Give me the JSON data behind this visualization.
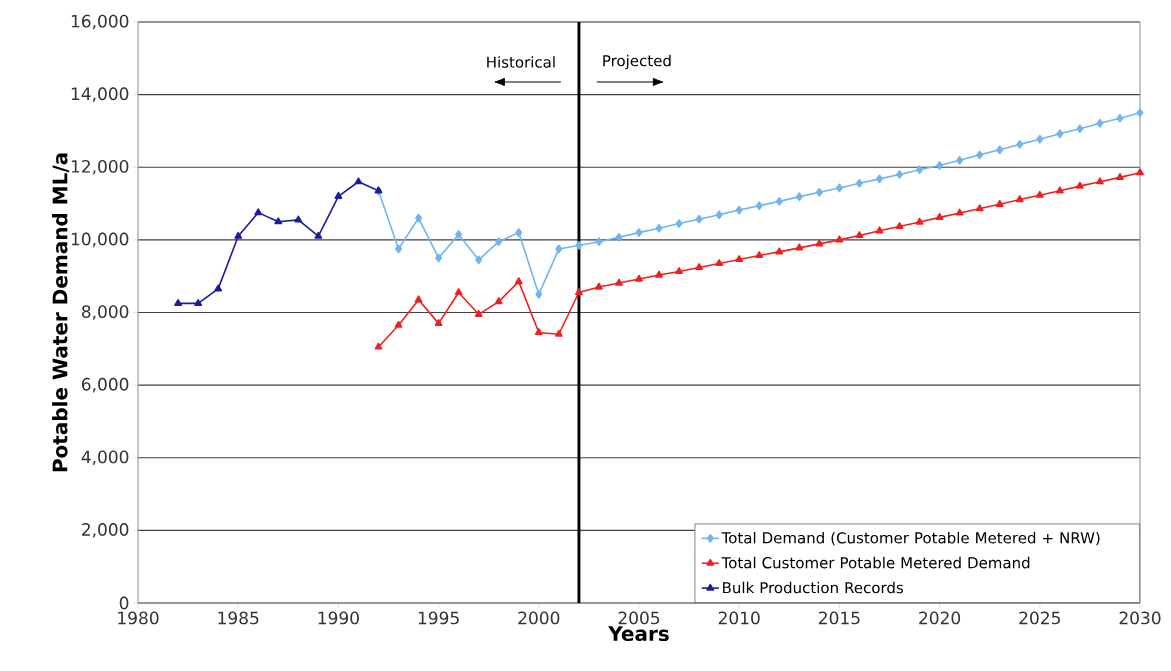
{
  "chart_data": {
    "type": "line",
    "xlabel": "Years",
    "ylabel": "Potable Water Demand ML/a",
    "xlim": [
      1980,
      2030
    ],
    "ylim": [
      0,
      16000
    ],
    "xticks": [
      {
        "value": 1980,
        "label": "1980"
      },
      {
        "value": 1985,
        "label": "1985"
      },
      {
        "value": 1990,
        "label": "1990"
      },
      {
        "value": 1995,
        "label": "1995"
      },
      {
        "value": 2000,
        "label": "2000"
      },
      {
        "value": 2005,
        "label": "2005"
      },
      {
        "value": 2010,
        "label": "2010"
      },
      {
        "value": 2015,
        "label": "2015"
      },
      {
        "value": 2020,
        "label": "2020"
      },
      {
        "value": 2025,
        "label": "2025"
      },
      {
        "value": 2030,
        "label": "2030"
      }
    ],
    "yticks": [
      {
        "value": 0,
        "label": "0"
      },
      {
        "value": 2000,
        "label": "2,000"
      },
      {
        "value": 4000,
        "label": "4,000"
      },
      {
        "value": 6000,
        "label": "6,000"
      },
      {
        "value": 8000,
        "label": "8,000"
      },
      {
        "value": 10000,
        "label": "10,000"
      },
      {
        "value": 12000,
        "label": "12,000"
      },
      {
        "value": 14000,
        "label": "14,000"
      },
      {
        "value": 16000,
        "label": "16,000"
      }
    ],
    "grid": "y",
    "legend": "bottom right",
    "series": [
      {
        "name": "Total Demand (Customer Potable Metered + NRW)",
        "color": "#70b4f0",
        "marker": "diamond",
        "x": [
          1992,
          1993,
          1994,
          1995,
          1996,
          1997,
          1998,
          1999,
          2000,
          2001,
          2002,
          2003,
          2004,
          2005,
          2006,
          2007,
          2008,
          2009,
          2010,
          2011,
          2012,
          2013,
          2014,
          2015,
          2016,
          2017,
          2018,
          2019,
          2020,
          2021,
          2022,
          2023,
          2024,
          2025,
          2026,
          2027,
          2028,
          2029,
          2030
        ],
        "values": [
          11350,
          9750,
          10600,
          9500,
          10150,
          9450,
          9950,
          10200,
          8500,
          9750,
          9850,
          9950,
          10070,
          10200,
          10320,
          10450,
          10570,
          10690,
          10820,
          10940,
          11060,
          11190,
          11310,
          11430,
          11560,
          11680,
          11800,
          11930,
          12050,
          12190,
          12340,
          12480,
          12630,
          12770,
          12920,
          13060,
          13210,
          13350,
          13500
        ]
      },
      {
        "name": "Total Customer Potable Metered Demand",
        "color": "#f02020",
        "marker": "triangle",
        "x": [
          1992,
          1993,
          1994,
          1995,
          1996,
          1997,
          1998,
          1999,
          2000,
          2001,
          2002,
          2003,
          2004,
          2005,
          2006,
          2007,
          2008,
          2009,
          2010,
          2011,
          2012,
          2013,
          2014,
          2015,
          2016,
          2017,
          2018,
          2019,
          2020,
          2021,
          2022,
          2023,
          2024,
          2025,
          2026,
          2027,
          2028,
          2029,
          2030
        ],
        "values": [
          7050,
          7650,
          8350,
          7700,
          8550,
          7950,
          8300,
          8850,
          7450,
          7400,
          8550,
          8700,
          8810,
          8920,
          9030,
          9130,
          9240,
          9350,
          9460,
          9570,
          9670,
          9780,
          9890,
          10000,
          10120,
          10250,
          10370,
          10490,
          10620,
          10740,
          10860,
          10980,
          11110,
          11230,
          11350,
          11480,
          11600,
          11720,
          11850
        ]
      },
      {
        "name": "Bulk Production Records",
        "color": "#1c1c9c",
        "marker": "triangle",
        "x": [
          1982,
          1983,
          1984,
          1985,
          1986,
          1987,
          1988,
          1989,
          1990,
          1991,
          1992
        ],
        "values": [
          8250,
          8250,
          8650,
          10100,
          10750,
          10500,
          10550,
          10100,
          11200,
          11600,
          11350
        ]
      }
    ],
    "ref_lines": [
      {
        "axis": "x",
        "value": 2002,
        "color": "#000000"
      }
    ],
    "annotations": [
      "Historical",
      "Projected"
    ]
  }
}
